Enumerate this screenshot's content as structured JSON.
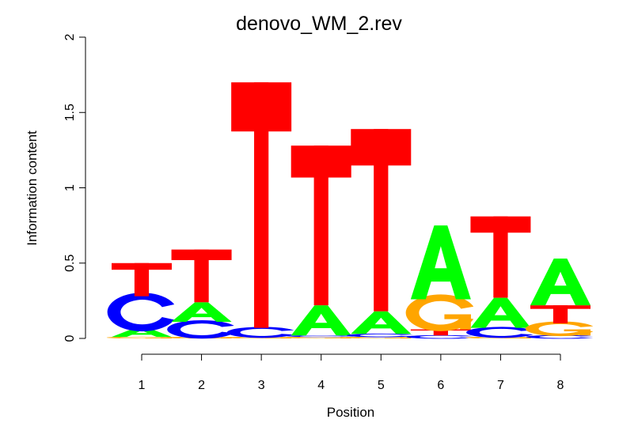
{
  "chart_data": {
    "type": "sequence-logo",
    "title": "denovo_WM_2.rev",
    "xlabel": "Position",
    "ylabel": "Information content",
    "ylim": [
      0,
      2
    ],
    "y_ticks": [
      "0",
      "0.5",
      "1",
      "1.5",
      "2"
    ],
    "categories": [
      "1",
      "2",
      "3",
      "4",
      "5",
      "6",
      "7",
      "8"
    ],
    "colors": {
      "A": "#00ff00",
      "C": "#0000ff",
      "G": "#ffa500",
      "T": "#ff0000"
    },
    "positions": [
      {
        "position": "1",
        "stack": [
          {
            "base": "G",
            "height": 0.01
          },
          {
            "base": "A",
            "height": 0.06
          },
          {
            "base": "C",
            "height": 0.21
          },
          {
            "base": "T",
            "height": 0.22
          }
        ]
      },
      {
        "position": "2",
        "stack": [
          {
            "base": "G",
            "height": 0.01
          },
          {
            "base": "C",
            "height": 0.1
          },
          {
            "base": "A",
            "height": 0.13
          },
          {
            "base": "T",
            "height": 0.35
          }
        ]
      },
      {
        "position": "3",
        "stack": [
          {
            "base": "G",
            "height": 0.01
          },
          {
            "base": "C",
            "height": 0.06
          },
          {
            "base": "T",
            "height": 1.63
          }
        ]
      },
      {
        "position": "4",
        "stack": [
          {
            "base": "G",
            "height": 0.01
          },
          {
            "base": "C",
            "height": 0.01
          },
          {
            "base": "A",
            "height": 0.2
          },
          {
            "base": "T",
            "height": 1.06
          }
        ]
      },
      {
        "position": "5",
        "stack": [
          {
            "base": "G",
            "height": 0.01
          },
          {
            "base": "C",
            "height": 0.02
          },
          {
            "base": "A",
            "height": 0.15
          },
          {
            "base": "T",
            "height": 1.21
          }
        ]
      },
      {
        "position": "6",
        "stack": [
          {
            "base": "C",
            "height": 0.02
          },
          {
            "base": "T",
            "height": 0.04
          },
          {
            "base": "G",
            "height": 0.2
          },
          {
            "base": "A",
            "height": 0.49
          }
        ]
      },
      {
        "position": "7",
        "stack": [
          {
            "base": "G",
            "height": 0.01
          },
          {
            "base": "C",
            "height": 0.06
          },
          {
            "base": "A",
            "height": 0.2
          },
          {
            "base": "T",
            "height": 0.54
          }
        ]
      },
      {
        "position": "8",
        "stack": [
          {
            "base": "C",
            "height": 0.02
          },
          {
            "base": "G",
            "height": 0.08
          },
          {
            "base": "T",
            "height": 0.12
          },
          {
            "base": "A",
            "height": 0.31
          }
        ]
      }
    ]
  }
}
